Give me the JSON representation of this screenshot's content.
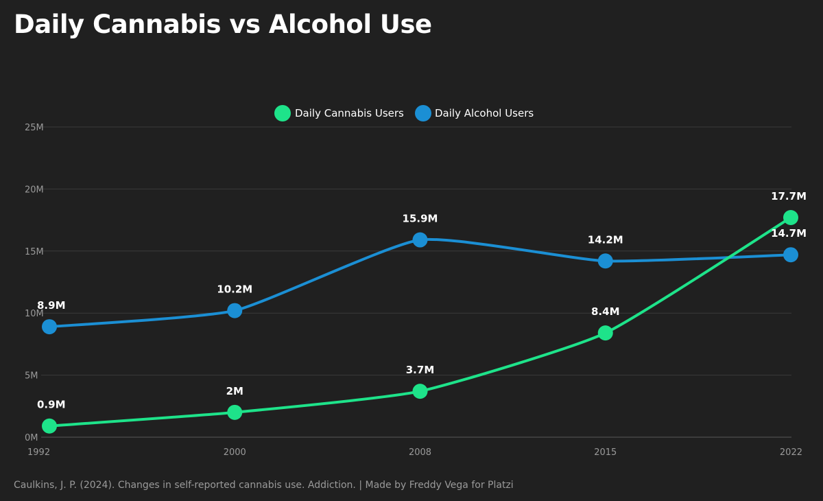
{
  "chart_data": {
    "type": "line",
    "title": "Daily Cannabis vs Alcohol Use",
    "categories": [
      "1992",
      "2000",
      "2008",
      "2015",
      "2022"
    ],
    "xlabel": "",
    "ylabel": "",
    "ylim": [
      0,
      25
    ],
    "yticks": [
      {
        "value": 0,
        "label": "0M"
      },
      {
        "value": 5,
        "label": "5M"
      },
      {
        "value": 10,
        "label": "10M"
      },
      {
        "value": 15,
        "label": "15M"
      },
      {
        "value": 20,
        "label": "20M"
      },
      {
        "value": 25,
        "label": "25M"
      }
    ],
    "grid": true,
    "legend_position": "top-center",
    "series": [
      {
        "name": "Daily Cannabis Users",
        "color": "#1ee38a",
        "values": [
          0.9,
          2.0,
          3.7,
          8.4,
          17.7
        ],
        "labels": [
          "0.9M",
          "2M",
          "3.7M",
          "8.4M",
          "17.7M"
        ]
      },
      {
        "name": "Daily Alcohol Users",
        "color": "#1b8fd4",
        "values": [
          8.9,
          10.2,
          15.9,
          14.2,
          14.7
        ],
        "labels": [
          "8.9M",
          "10.2M",
          "15.9M",
          "14.2M",
          "14.7M"
        ]
      }
    ]
  },
  "footer": {
    "source": "Caulkins, J. P. (2024). Changes in self-reported cannabis use. Addiction. | Made by Freddy Vega for Platzi"
  }
}
